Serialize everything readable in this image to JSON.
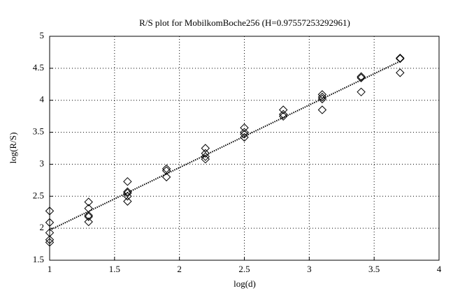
{
  "chart_data": {
    "type": "scatter",
    "title": "R/S plot for MobilkomBoche256 (H=0.97557253292961)",
    "x_label": "log(d)",
    "y_label": "log(R/S)",
    "xlim": [
      1,
      4
    ],
    "ylim": [
      1.5,
      5
    ],
    "xticks": [
      1,
      1.5,
      2,
      2.5,
      3,
      3.5,
      4
    ],
    "yticks": [
      1.5,
      2,
      2.5,
      3,
      3.5,
      4,
      4.5,
      5
    ],
    "grid": true,
    "color": "#000000",
    "points": {
      "x": [
        1,
        1,
        1,
        1,
        1,
        1.3,
        1.3,
        1.3,
        1.3,
        1.3,
        1.6,
        1.6,
        1.6,
        1.6,
        1.6,
        1.9,
        1.9,
        1.9,
        2.2,
        2.2,
        2.2,
        2.2,
        2.5,
        2.5,
        2.5,
        2.5,
        2.8,
        2.8,
        2.8,
        3.1,
        3.1,
        3.1,
        3.1,
        3.4,
        3.4,
        3.4,
        3.7,
        3.7,
        3.7
      ],
      "values": [
        2.27,
        2.09,
        1.93,
        1.82,
        1.78,
        2.41,
        2.31,
        2.2,
        2.18,
        2.1,
        2.73,
        2.57,
        2.55,
        2.5,
        2.42,
        2.93,
        2.9,
        2.8,
        3.25,
        3.17,
        3.12,
        3.08,
        3.57,
        3.5,
        3.47,
        3.42,
        3.85,
        3.78,
        3.75,
        4.09,
        4.05,
        4.02,
        3.85,
        4.37,
        4.35,
        4.13,
        4.66,
        4.65,
        4.43
      ]
    },
    "fit": {
      "x": [
        1,
        3.7
      ],
      "values": [
        1.97,
        4.61
      ]
    }
  }
}
